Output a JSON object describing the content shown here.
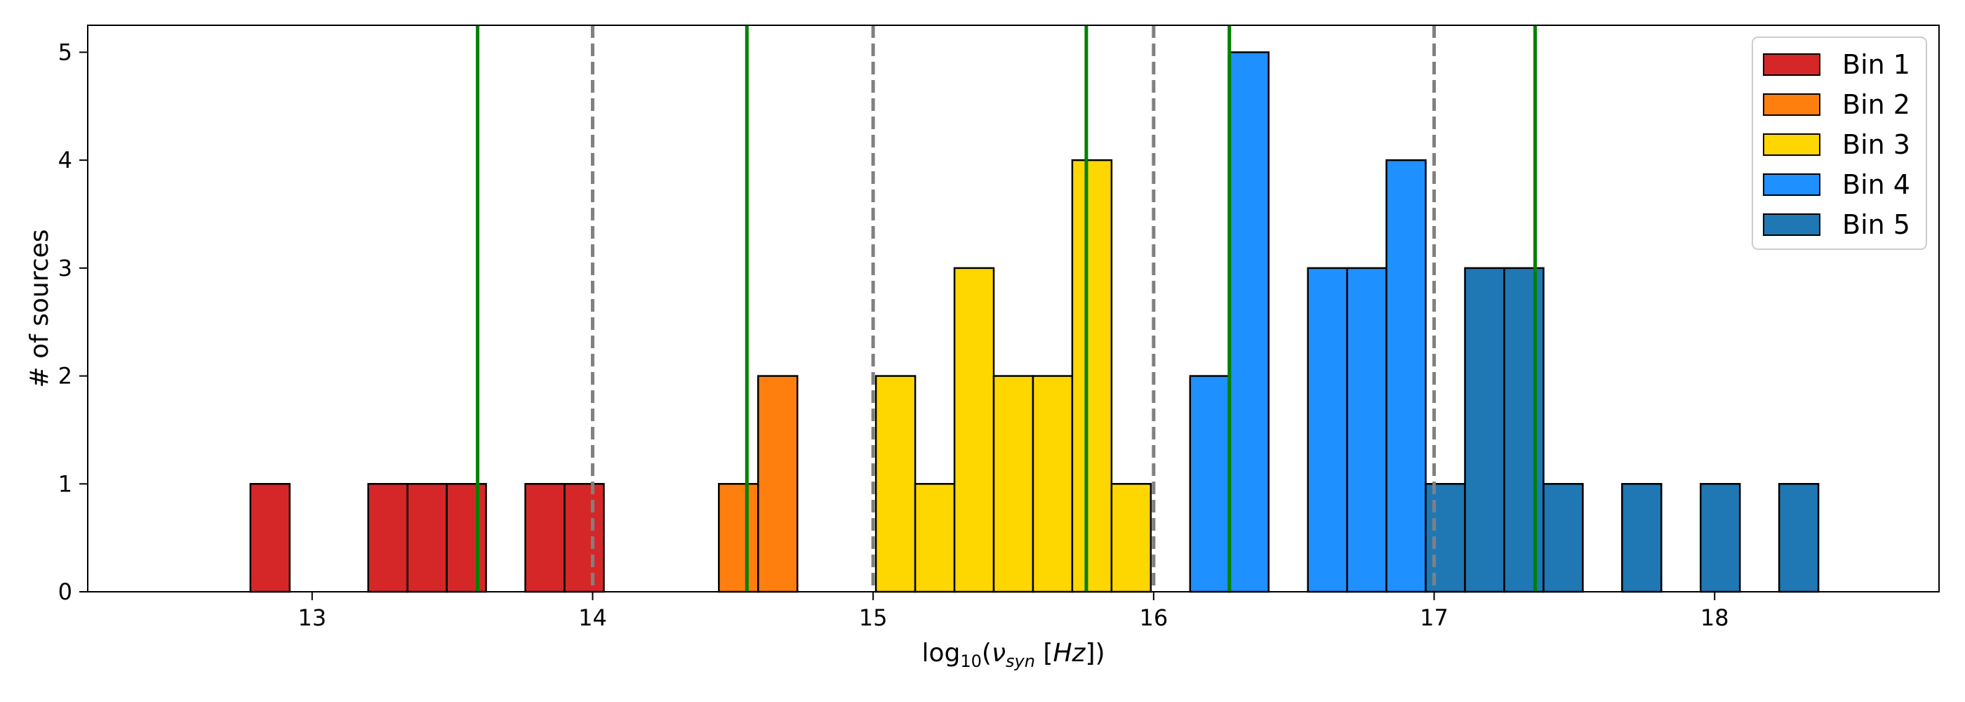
{
  "chart_data": {
    "type": "bar",
    "xlabel": "log₁₀(ν_syn [Hz])",
    "ylabel": "# of sources",
    "xlim": [
      12.2,
      18.8
    ],
    "ylim": [
      0,
      5.25
    ],
    "xticks": [
      "13",
      "14",
      "15",
      "16",
      "17",
      "18"
    ],
    "yticks": [
      "0",
      "1",
      "2",
      "3",
      "4",
      "5"
    ],
    "bin_width": 0.14,
    "legend_position": "top-right",
    "grid": false,
    "series": [
      {
        "name": "Bin 1",
        "color": "#d62728",
        "x": [
          12.78,
          13.2,
          13.34,
          13.48,
          13.76,
          13.9
        ],
        "values": [
          1,
          1,
          1,
          1,
          1,
          1
        ]
      },
      {
        "name": "Bin 2",
        "color": "#ff7f0e",
        "x": [
          14.45,
          14.59
        ],
        "values": [
          1,
          2
        ]
      },
      {
        "name": "Bin 3",
        "color": "#ffd700",
        "x": [
          15.01,
          15.15,
          15.29,
          15.43,
          15.57,
          15.71,
          15.85
        ],
        "values": [
          2,
          1,
          3,
          2,
          2,
          4,
          1
        ]
      },
      {
        "name": "Bin 4",
        "color": "#1e90ff",
        "x": [
          16.13,
          16.27,
          16.55,
          16.69,
          16.83
        ],
        "values": [
          2,
          5,
          3,
          3,
          4
        ]
      },
      {
        "name": "Bin 5",
        "color": "#1f77b4",
        "x": [
          16.97,
          17.11,
          17.25,
          17.39,
          17.67,
          17.95,
          18.23
        ],
        "values": [
          1,
          3,
          3,
          1,
          1,
          1,
          1
        ]
      }
    ],
    "bin_edges": [
      14,
      15,
      16,
      17
    ],
    "bin_centers": [
      13.59,
      14.55,
      15.76,
      16.27,
      17.36
    ],
    "edge_line_color": "#808080",
    "center_line_color": "#008000"
  }
}
